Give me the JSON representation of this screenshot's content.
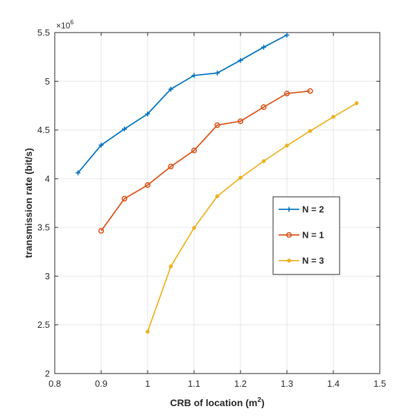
{
  "chart_data": {
    "type": "line",
    "title": "",
    "xlabel": "CRB of location (m",
    "xlabel_sup": "2",
    "xlabel_close": ")",
    "ylabel": "transmission rate (bit/s)",
    "y_exponent_base": "×10",
    "y_exponent_power": "6",
    "xlim": [
      0.8,
      1.5
    ],
    "ylim": [
      2,
      5.5
    ],
    "xticks": [
      0.8,
      0.9,
      1.0,
      1.1,
      1.2,
      1.3,
      1.4,
      1.5
    ],
    "xtick_labels": [
      "0.8",
      "0.9",
      "1",
      "1.1",
      "1.2",
      "1.3",
      "1.4",
      "1.5"
    ],
    "yticks": [
      2,
      2.5,
      3,
      3.5,
      4,
      4.5,
      5,
      5.5
    ],
    "ytick_labels": [
      "2",
      "2.5",
      "3",
      "3.5",
      "4",
      "4.5",
      "5",
      "5.5"
    ],
    "grid": true,
    "legend_position": "center-right",
    "series": [
      {
        "name": "N = 2",
        "color": "#0072BD",
        "marker": "plus",
        "x": [
          0.85,
          0.9,
          0.95,
          1.0,
          1.05,
          1.1,
          1.15,
          1.2,
          1.25,
          1.3
        ],
        "values": [
          4.06,
          4.345,
          4.51,
          4.665,
          4.92,
          5.06,
          5.085,
          5.215,
          5.35,
          5.475
        ]
      },
      {
        "name": "N = 1",
        "color": "#D95319",
        "marker": "circle",
        "x": [
          0.9,
          0.95,
          1.0,
          1.05,
          1.1,
          1.15,
          1.2,
          1.25,
          1.3,
          1.35
        ],
        "values": [
          3.465,
          3.795,
          3.935,
          4.125,
          4.29,
          4.55,
          4.59,
          4.735,
          4.875,
          4.9
        ]
      },
      {
        "name": "N = 3",
        "color": "#EDB120",
        "marker": "dot",
        "x": [
          1.0,
          1.05,
          1.1,
          1.15,
          1.2,
          1.25,
          1.3,
          1.35,
          1.4,
          1.45
        ],
        "values": [
          2.43,
          3.1,
          3.495,
          3.82,
          4.01,
          4.18,
          4.34,
          4.49,
          4.635,
          4.775
        ]
      }
    ]
  }
}
